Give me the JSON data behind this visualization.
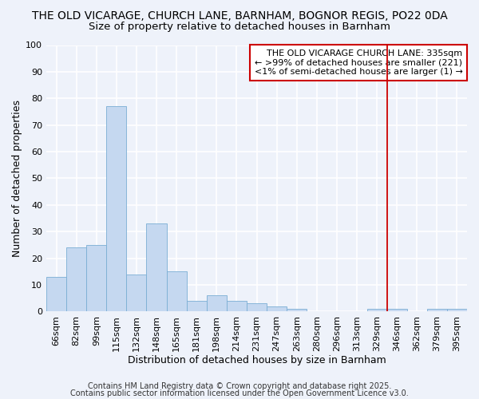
{
  "title1": "THE OLD VICARAGE, CHURCH LANE, BARNHAM, BOGNOR REGIS, PO22 0DA",
  "title2": "Size of property relative to detached houses in Barnham",
  "xlabel": "Distribution of detached houses by size in Barnham",
  "ylabel": "Number of detached properties",
  "categories": [
    "66sqm",
    "82sqm",
    "99sqm",
    "115sqm",
    "132sqm",
    "148sqm",
    "165sqm",
    "181sqm",
    "198sqm",
    "214sqm",
    "231sqm",
    "247sqm",
    "263sqm",
    "280sqm",
    "296sqm",
    "313sqm",
    "329sqm",
    "346sqm",
    "362sqm",
    "379sqm",
    "395sqm"
  ],
  "values": [
    13,
    24,
    25,
    77,
    14,
    33,
    15,
    4,
    6,
    4,
    3,
    2,
    1,
    0,
    0,
    0,
    1,
    1,
    0,
    1,
    1
  ],
  "bar_color": "#c5d8f0",
  "bar_edge_color": "#7aaed4",
  "background_color": "#eef2fa",
  "grid_color": "#ffffff",
  "ylim": [
    0,
    100
  ],
  "yticks": [
    0,
    10,
    20,
    30,
    40,
    50,
    60,
    70,
    80,
    90,
    100
  ],
  "vline_color": "#cc0000",
  "legend_title": "THE OLD VICARAGE CHURCH LANE: 335sqm",
  "legend_line1": "← >99% of detached houses are smaller (221)",
  "legend_line2": "<1% of semi-detached houses are larger (1) →",
  "legend_box_color": "#cc0000",
  "footer_line1": "Contains HM Land Registry data © Crown copyright and database right 2025.",
  "footer_line2": "Contains public sector information licensed under the Open Government Licence v3.0.",
  "title1_fontsize": 10,
  "title2_fontsize": 9.5,
  "xlabel_fontsize": 9,
  "ylabel_fontsize": 9,
  "tick_fontsize": 8,
  "legend_fontsize": 8,
  "footer_fontsize": 7
}
